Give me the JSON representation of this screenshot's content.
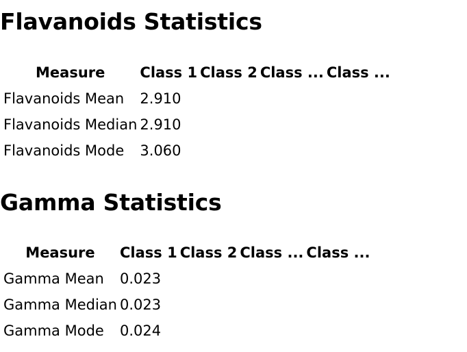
{
  "sections": [
    {
      "title": "Flavanoids Statistics",
      "columns": [
        "Measure",
        "Class 1",
        "Class 2",
        "Class ...",
        "Class ..."
      ],
      "rows": [
        [
          "Flavanoids Mean",
          "2.910"
        ],
        [
          "Flavanoids Median",
          "2.910"
        ],
        [
          "Flavanoids Mode",
          "3.060"
        ]
      ]
    },
    {
      "title": "Gamma Statistics",
      "columns": [
        "Measure",
        "Class 1",
        "Class 2",
        "Class ...",
        "Class ..."
      ],
      "rows": [
        [
          "Gamma Mean",
          "0.023"
        ],
        [
          "Gamma Median",
          "0.023"
        ],
        [
          "Gamma Mode",
          "0.024"
        ]
      ]
    }
  ]
}
